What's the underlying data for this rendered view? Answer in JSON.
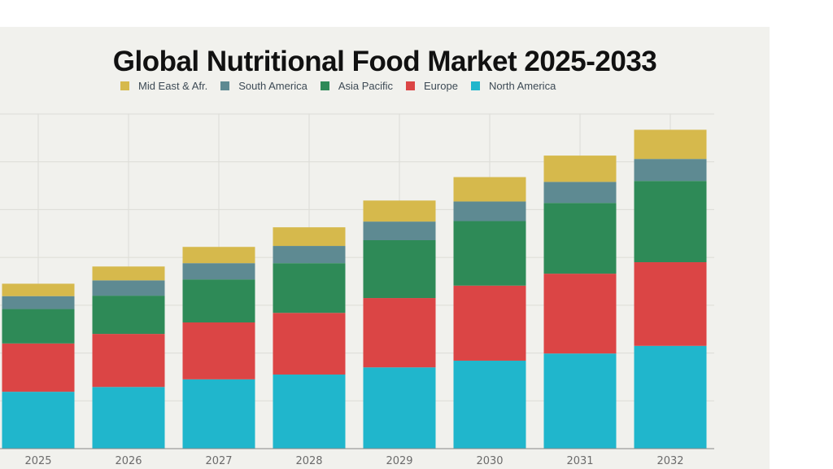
{
  "chart_data": {
    "type": "bar",
    "stacked": true,
    "title": "Global Nutritional Food Market 2025-2033",
    "xlabel": "",
    "ylabel": "",
    "categories": [
      "2025",
      "2026",
      "2027",
      "2028",
      "2029",
      "2030",
      "2031",
      "2032"
    ],
    "ylim": [
      0,
      7
    ],
    "grid": true,
    "legend_position": "top",
    "series": [
      {
        "name": "North America",
        "color": "#20b6cc",
        "values": [
          1.19,
          1.29,
          1.45,
          1.55,
          1.7,
          1.84,
          1.99,
          2.15
        ]
      },
      {
        "name": "Europe",
        "color": "#db4545",
        "values": [
          1.01,
          1.11,
          1.19,
          1.29,
          1.45,
          1.57,
          1.67,
          1.75
        ]
      },
      {
        "name": "Asia Pacific",
        "color": "#2e8a57",
        "values": [
          0.72,
          0.8,
          0.9,
          1.04,
          1.21,
          1.35,
          1.48,
          1.7
        ]
      },
      {
        "name": "South America",
        "color": "#5e8a92",
        "values": [
          0.27,
          0.32,
          0.34,
          0.36,
          0.39,
          0.41,
          0.44,
          0.46
        ]
      },
      {
        "name": "Mid East & Afr.",
        "color": "#d6b94c",
        "values": [
          0.26,
          0.29,
          0.34,
          0.39,
          0.44,
          0.51,
          0.55,
          0.61
        ]
      }
    ],
    "legend_order": [
      "Mid East & Afr.",
      "South America",
      "Asia Pacific",
      "Europe",
      "North America"
    ]
  }
}
